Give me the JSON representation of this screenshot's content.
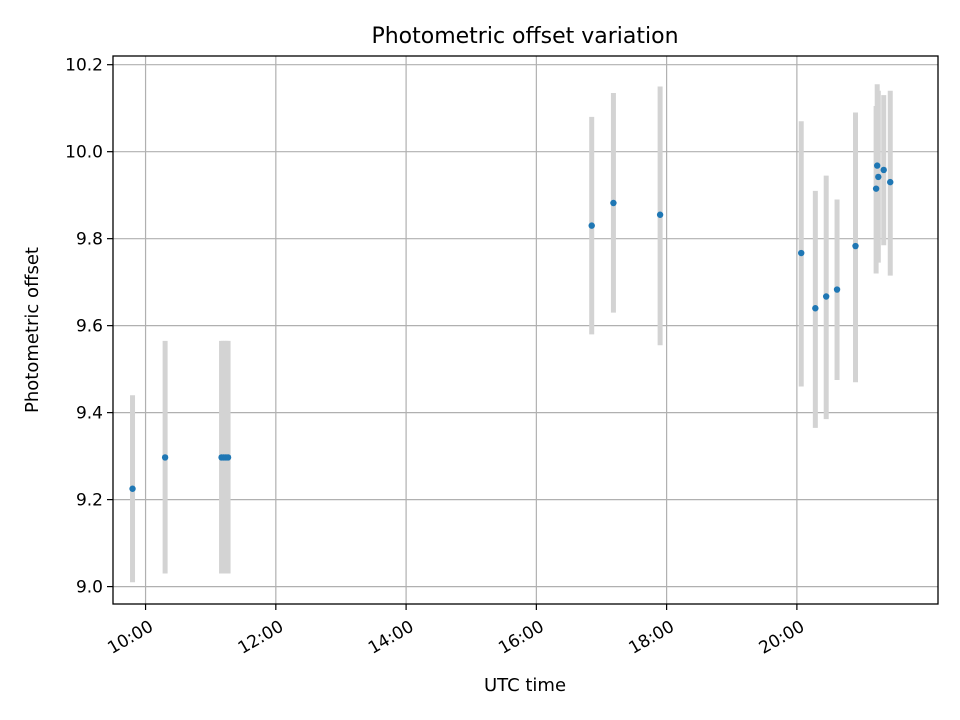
{
  "chart_data": {
    "type": "scatter",
    "title": "Photometric offset variation",
    "xlabel": "UTC time",
    "ylabel": "Photometric offset",
    "xlim": [
      "09:30",
      "22:10"
    ],
    "ylim": [
      8.96,
      10.22
    ],
    "grid": true,
    "xticks": [
      "10:00",
      "12:00",
      "14:00",
      "16:00",
      "18:00",
      "20:00"
    ],
    "yticks": [
      9.0,
      9.2,
      9.4,
      9.6,
      9.8,
      10.0,
      10.2
    ],
    "ytick_labels": [
      "9.0",
      "9.2",
      "9.4",
      "9.6",
      "9.8",
      "10.0",
      "10.2"
    ],
    "colors": {
      "point": "#1f77b4",
      "errorbar": "#d3d3d3",
      "grid": "#b0b0b0"
    },
    "points": [
      {
        "x": "09:48",
        "y": 9.225,
        "ylow": 9.01,
        "yhigh": 9.44
      },
      {
        "x": "10:18",
        "y": 9.297,
        "ylow": 9.03,
        "yhigh": 9.565
      },
      {
        "x": "11:10",
        "y": 9.297,
        "ylow": 9.03,
        "yhigh": 9.565
      },
      {
        "x": "11:12",
        "y": 9.297,
        "ylow": 9.03,
        "yhigh": 9.565
      },
      {
        "x": "11:14",
        "y": 9.297,
        "ylow": 9.03,
        "yhigh": 9.565
      },
      {
        "x": "11:16",
        "y": 9.297,
        "ylow": 9.03,
        "yhigh": 9.565
      },
      {
        "x": "16:51",
        "y": 9.83,
        "ylow": 9.58,
        "yhigh": 10.08
      },
      {
        "x": "17:11",
        "y": 9.882,
        "ylow": 9.63,
        "yhigh": 10.135
      },
      {
        "x": "17:54",
        "y": 9.855,
        "ylow": 9.555,
        "yhigh": 10.15
      },
      {
        "x": "20:04",
        "y": 9.767,
        "ylow": 9.46,
        "yhigh": 10.07
      },
      {
        "x": "20:17",
        "y": 9.64,
        "ylow": 9.365,
        "yhigh": 9.91
      },
      {
        "x": "20:27",
        "y": 9.667,
        "ylow": 9.385,
        "yhigh": 9.945
      },
      {
        "x": "20:37",
        "y": 9.683,
        "ylow": 9.475,
        "yhigh": 9.89
      },
      {
        "x": "20:54",
        "y": 9.783,
        "ylow": 9.47,
        "yhigh": 10.09
      },
      {
        "x": "21:13",
        "y": 9.915,
        "ylow": 9.72,
        "yhigh": 10.105
      },
      {
        "x": "21:14",
        "y": 9.968,
        "ylow": 9.79,
        "yhigh": 10.155
      },
      {
        "x": "21:15",
        "y": 9.942,
        "ylow": 9.745,
        "yhigh": 10.14
      },
      {
        "x": "21:20",
        "y": 9.958,
        "ylow": 9.785,
        "yhigh": 10.13
      },
      {
        "x": "21:26",
        "y": 9.93,
        "ylow": 9.715,
        "yhigh": 10.14
      }
    ]
  }
}
